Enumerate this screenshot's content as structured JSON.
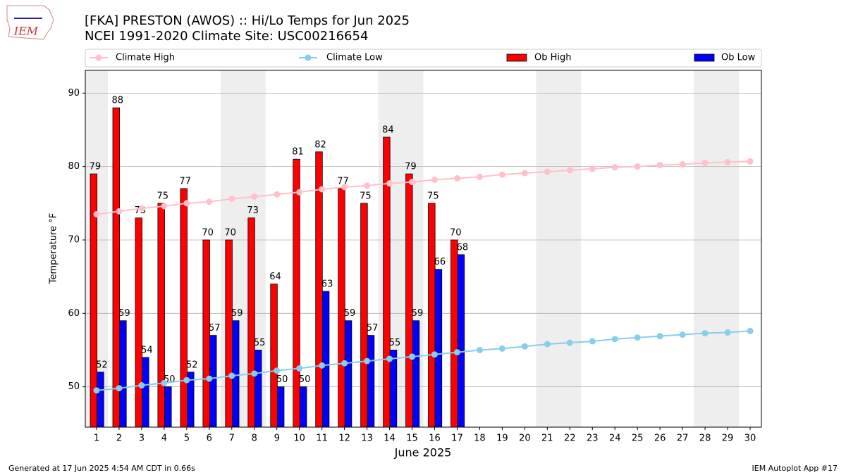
{
  "logo_text": "IEM",
  "footer_left": "Generated at 17 Jun 2025 4:54 AM CDT in 0.66s",
  "footer_right": "IEM Autoplot App #17",
  "chart_data": {
    "type": "bar",
    "title": "[FKA] PRESTON (AWOS) :: Hi/Lo Temps for Jun 2025",
    "subtitle": "NCEI 1991-2020 Climate Site: USC00216654",
    "x_label": "June 2025",
    "y_label": "Temperature °F",
    "x": [
      1,
      2,
      3,
      4,
      5,
      6,
      7,
      8,
      9,
      10,
      11,
      12,
      13,
      14,
      15,
      16,
      17,
      18,
      19,
      20,
      21,
      22,
      23,
      24,
      25,
      26,
      27,
      28,
      29,
      30
    ],
    "xlim": [
      0.5,
      30.5
    ],
    "xticks": [
      1,
      2,
      3,
      4,
      5,
      6,
      7,
      8,
      9,
      10,
      11,
      12,
      13,
      14,
      15,
      16,
      17,
      18,
      19,
      20,
      21,
      22,
      23,
      24,
      25,
      26,
      27,
      28,
      29,
      30
    ],
    "ylim": [
      44.5,
      93.1
    ],
    "yticks": [
      50,
      60,
      70,
      80,
      90
    ],
    "grid": true,
    "shaded_x_ranges": [
      [
        0.5,
        1.5
      ],
      [
        6.5,
        8.5
      ],
      [
        13.5,
        15.5
      ],
      [
        20.5,
        22.5
      ],
      [
        27.5,
        29.5
      ]
    ],
    "series": [
      {
        "name": "Climate High",
        "type": "line",
        "color": "#ffc0cb",
        "values": [
          73.5,
          73.9,
          74.3,
          74.6,
          75.0,
          75.2,
          75.6,
          75.9,
          76.2,
          76.5,
          76.9,
          77.2,
          77.4,
          77.7,
          77.9,
          78.2,
          78.4,
          78.6,
          78.9,
          79.1,
          79.3,
          79.5,
          79.7,
          79.9,
          80.0,
          80.2,
          80.3,
          80.5,
          80.6,
          80.7
        ]
      },
      {
        "name": "Climate Low",
        "type": "line",
        "color": "#87ceeb",
        "values": [
          49.5,
          49.8,
          50.2,
          50.5,
          50.9,
          51.1,
          51.5,
          51.8,
          52.2,
          52.5,
          52.9,
          53.2,
          53.5,
          53.8,
          54.1,
          54.4,
          54.7,
          55.0,
          55.2,
          55.5,
          55.8,
          56.0,
          56.2,
          56.5,
          56.7,
          56.9,
          57.1,
          57.3,
          57.4,
          57.6
        ]
      },
      {
        "name": "Ob High",
        "type": "bar",
        "color": "#ff0000",
        "values": [
          79,
          88,
          73,
          75,
          77,
          70,
          70,
          73,
          64,
          81,
          82,
          77,
          75,
          84,
          79,
          75,
          70,
          null,
          null,
          null,
          null,
          null,
          null,
          null,
          null,
          null,
          null,
          null,
          null,
          null
        ]
      },
      {
        "name": "Ob Low",
        "type": "bar",
        "color": "#0000ff",
        "values": [
          52,
          59,
          54,
          50,
          52,
          57,
          59,
          55,
          50,
          50,
          63,
          59,
          57,
          55,
          59,
          66,
          68,
          null,
          null,
          null,
          null,
          null,
          null,
          null,
          null,
          null,
          null,
          null,
          null,
          null
        ]
      }
    ]
  }
}
